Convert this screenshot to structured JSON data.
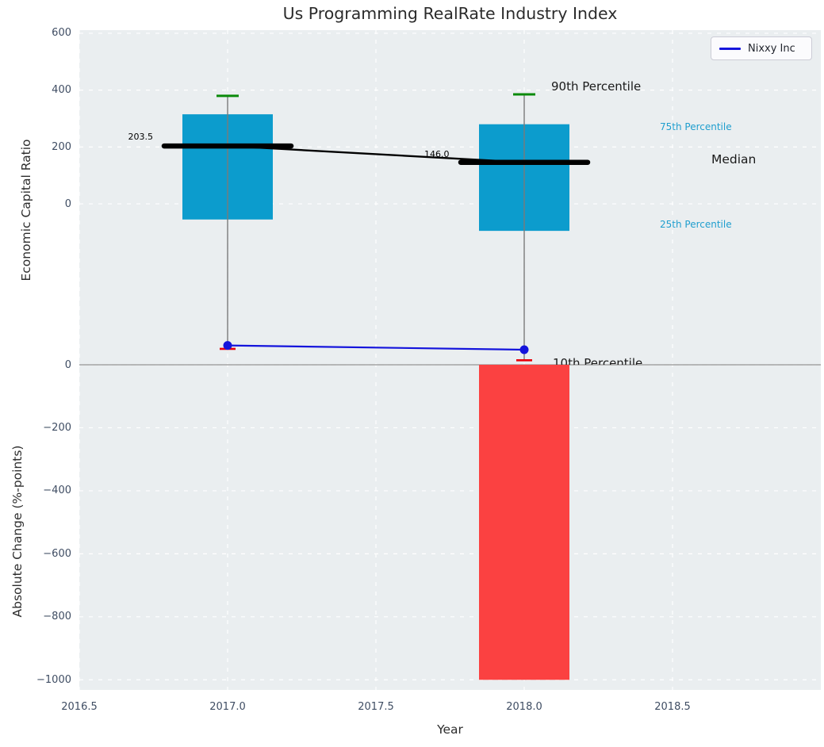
{
  "title": "Us Programming RealRate Industry Index",
  "legend": {
    "label": "Nixxy Inc"
  },
  "x_axis": {
    "label": "Year",
    "tick_labels": [
      "2016.5",
      "2017.0",
      "2017.5",
      "2018.0",
      "2018.5"
    ]
  },
  "top_y_axis": {
    "label": "Economic Capital Ratio",
    "tick_labels": [
      "600",
      "400",
      "200",
      "0"
    ]
  },
  "bottom_y_axis": {
    "label": "Absolute Change (%-points)",
    "tick_labels": [
      "0",
      "−200",
      "−400",
      "−600",
      "−800",
      "−1000"
    ]
  },
  "annotations": {
    "p90": "90th Percentile",
    "p75": "75th Percentile",
    "median": "Median",
    "p25": "25th Percentile",
    "p10": "10th Percentile"
  },
  "colors": {
    "box": "#0c9ccd",
    "bar_negative": "#fb4141",
    "nixxy_line": "#1414dc",
    "cap_high": "#0a8a0a",
    "cap_low": "#e8000b",
    "median_line": "#000000",
    "whisker": "#7a7a7a",
    "percentile_label_blue": "#1f9ece",
    "plot_bg": "#eaeef0",
    "grid": "#ffffff",
    "spine": "#a3a3a3",
    "tick_label": "#3f4d63"
  },
  "chart_data": {
    "type": "combo",
    "title": "Us Programming RealRate Industry Index",
    "xlabel": "Year",
    "xlim": [
      2016.5,
      2019.0
    ],
    "xticks": [
      2016.5,
      2017.0,
      2017.5,
      2018.0,
      2018.5
    ],
    "x": [
      2017,
      2018
    ],
    "grid": true,
    "legend_position": "upper right",
    "top_panel": {
      "ylabel": "Economic Capital Ratio",
      "ylim": [
        -566,
        611
      ],
      "yticks": [
        600,
        400,
        200,
        0
      ],
      "industry_percentile_boxes": [
        {
          "year": 2017,
          "p90": 380,
          "p75": 315,
          "median": 203.5,
          "p25": -55,
          "p10": -510
        },
        {
          "year": 2018,
          "p90": 385,
          "p75": 280,
          "median": 146.0,
          "p25": -95,
          "p10": -550
        }
      ],
      "median_line": {
        "x": [
          2017,
          2018
        ],
        "values": [
          203.5,
          146.0
        ],
        "labels": [
          "203.5",
          "146.0"
        ]
      },
      "nixxy_line": {
        "name": "Nixxy Inc",
        "x": [
          2017,
          2018
        ],
        "values": [
          -498,
          -513
        ]
      }
    },
    "bottom_panel": {
      "ylabel": "Absolute Change (%-points)",
      "ylim": [
        -1032,
        0
      ],
      "yticks": [
        0,
        -200,
        -400,
        -600,
        -800,
        -1000
      ],
      "bars": [
        {
          "year": 2018,
          "value": -1000
        }
      ]
    }
  }
}
